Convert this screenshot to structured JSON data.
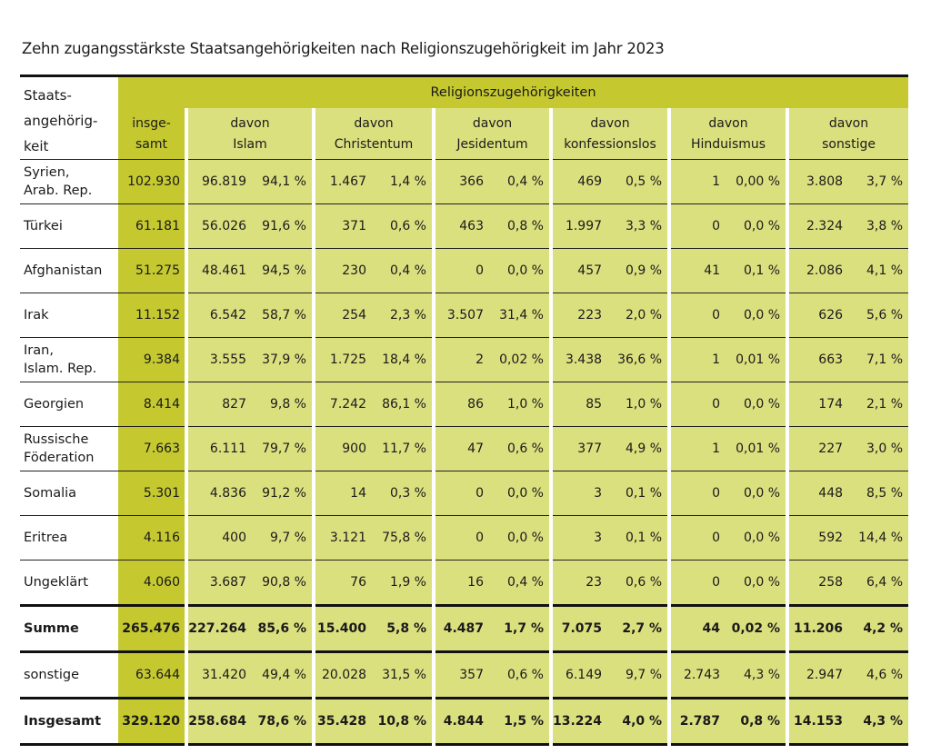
{
  "title": "Zehn zugangsstärkste Staatsangehörigkeiten nach Religionszugehörigkeit im Jahr 2023",
  "header": {
    "col0": [
      "Staats-",
      "angehörig-",
      "keit"
    ],
    "band": "Religionszugehörigkeiten",
    "total": [
      "insge-",
      "samt"
    ],
    "religions": [
      [
        "davon",
        "Islam"
      ],
      [
        "davon",
        "Christentum"
      ],
      [
        "davon",
        "Jesidentum"
      ],
      [
        "davon",
        "konfessionslos"
      ],
      [
        "davon",
        "Hinduismus"
      ],
      [
        "davon",
        "sonstige"
      ]
    ]
  },
  "colors": {
    "dark": "#c5c92f",
    "light": "#dbe07f"
  },
  "rows": [
    {
      "name": [
        "Syrien,",
        "Arab. Rep."
      ],
      "total": "102.930",
      "cells": [
        [
          "96.819",
          "94,1 %"
        ],
        [
          "1.467",
          "1,4 %"
        ],
        [
          "366",
          "0,4 %"
        ],
        [
          "469",
          "0,5 %"
        ],
        [
          "1",
          "0,00 %"
        ],
        [
          "3.808",
          "3,7 %"
        ]
      ]
    },
    {
      "name": [
        "Türkei"
      ],
      "total": "61.181",
      "cells": [
        [
          "56.026",
          "91,6 %"
        ],
        [
          "371",
          "0,6 %"
        ],
        [
          "463",
          "0,8 %"
        ],
        [
          "1.997",
          "3,3 %"
        ],
        [
          "0",
          "0,0 %"
        ],
        [
          "2.324",
          "3,8 %"
        ]
      ]
    },
    {
      "name": [
        "Afghanistan"
      ],
      "total": "51.275",
      "cells": [
        [
          "48.461",
          "94,5 %"
        ],
        [
          "230",
          "0,4 %"
        ],
        [
          "0",
          "0,0 %"
        ],
        [
          "457",
          "0,9 %"
        ],
        [
          "41",
          "0,1 %"
        ],
        [
          "2.086",
          "4,1 %"
        ]
      ]
    },
    {
      "name": [
        "Irak"
      ],
      "total": "11.152",
      "cells": [
        [
          "6.542",
          "58,7 %"
        ],
        [
          "254",
          "2,3 %"
        ],
        [
          "3.507",
          "31,4 %"
        ],
        [
          "223",
          "2,0 %"
        ],
        [
          "0",
          "0,0 %"
        ],
        [
          "626",
          "5,6 %"
        ]
      ]
    },
    {
      "name": [
        "Iran,",
        "Islam. Rep."
      ],
      "total": "9.384",
      "cells": [
        [
          "3.555",
          "37,9 %"
        ],
        [
          "1.725",
          "18,4 %"
        ],
        [
          "2",
          "0,02 %"
        ],
        [
          "3.438",
          "36,6 %"
        ],
        [
          "1",
          "0,01 %"
        ],
        [
          "663",
          "7,1 %"
        ]
      ]
    },
    {
      "name": [
        "Georgien"
      ],
      "total": "8.414",
      "cells": [
        [
          "827",
          "9,8 %"
        ],
        [
          "7.242",
          "86,1 %"
        ],
        [
          "86",
          "1,0 %"
        ],
        [
          "85",
          "1,0 %"
        ],
        [
          "0",
          "0,0 %"
        ],
        [
          "174",
          "2,1 %"
        ]
      ]
    },
    {
      "name": [
        "Russische",
        "Föderation"
      ],
      "total": "7.663",
      "cells": [
        [
          "6.111",
          "79,7 %"
        ],
        [
          "900",
          "11,7 %"
        ],
        [
          "47",
          "0,6 %"
        ],
        [
          "377",
          "4,9 %"
        ],
        [
          "1",
          "0,01 %"
        ],
        [
          "227",
          "3,0 %"
        ]
      ]
    },
    {
      "name": [
        "Somalia"
      ],
      "total": "5.301",
      "cells": [
        [
          "4.836",
          "91,2 %"
        ],
        [
          "14",
          "0,3 %"
        ],
        [
          "0",
          "0,0 %"
        ],
        [
          "3",
          "0,1 %"
        ],
        [
          "0",
          "0,0 %"
        ],
        [
          "448",
          "8,5 %"
        ]
      ]
    },
    {
      "name": [
        "Eritrea"
      ],
      "total": "4.116",
      "cells": [
        [
          "400",
          "9,7 %"
        ],
        [
          "3.121",
          "75,8 %"
        ],
        [
          "0",
          "0,0 %"
        ],
        [
          "3",
          "0,1 %"
        ],
        [
          "0",
          "0,0 %"
        ],
        [
          "592",
          "14,4 %"
        ]
      ]
    },
    {
      "name": [
        "Ungeklärt"
      ],
      "total": "4.060",
      "cells": [
        [
          "3.687",
          "90,8 %"
        ],
        [
          "76",
          "1,9 %"
        ],
        [
          "16",
          "0,4 %"
        ],
        [
          "23",
          "0,6 %"
        ],
        [
          "0",
          "0,0 %"
        ],
        [
          "258",
          "6,4 %"
        ]
      ]
    },
    {
      "name": [
        "Summe"
      ],
      "total": "265.476",
      "cells": [
        [
          "227.264",
          "85,6 %"
        ],
        [
          "15.400",
          "5,8 %"
        ],
        [
          "4.487",
          "1,7 %"
        ],
        [
          "7.075",
          "2,7 %"
        ],
        [
          "44",
          "0,02 %"
        ],
        [
          "11.206",
          "4,2 %"
        ]
      ]
    },
    {
      "name": [
        "sonstige"
      ],
      "total": "63.644",
      "cells": [
        [
          "31.420",
          "49,4 %"
        ],
        [
          "20.028",
          "31,5 %"
        ],
        [
          "357",
          "0,6 %"
        ],
        [
          "6.149",
          "9,7 %"
        ],
        [
          "2.743",
          "4,3 %"
        ],
        [
          "2.947",
          "4,6 %"
        ]
      ]
    },
    {
      "name": [
        "Insgesamt"
      ],
      "total": "329.120",
      "cells": [
        [
          "258.684",
          "78,6 %"
        ],
        [
          "35.428",
          "10,8 %"
        ],
        [
          "4.844",
          "1,5 %"
        ],
        [
          "13.224",
          "4,0 %"
        ],
        [
          "2.787",
          "0,8 %"
        ],
        [
          "14.153",
          "4,3 %"
        ]
      ]
    }
  ]
}
